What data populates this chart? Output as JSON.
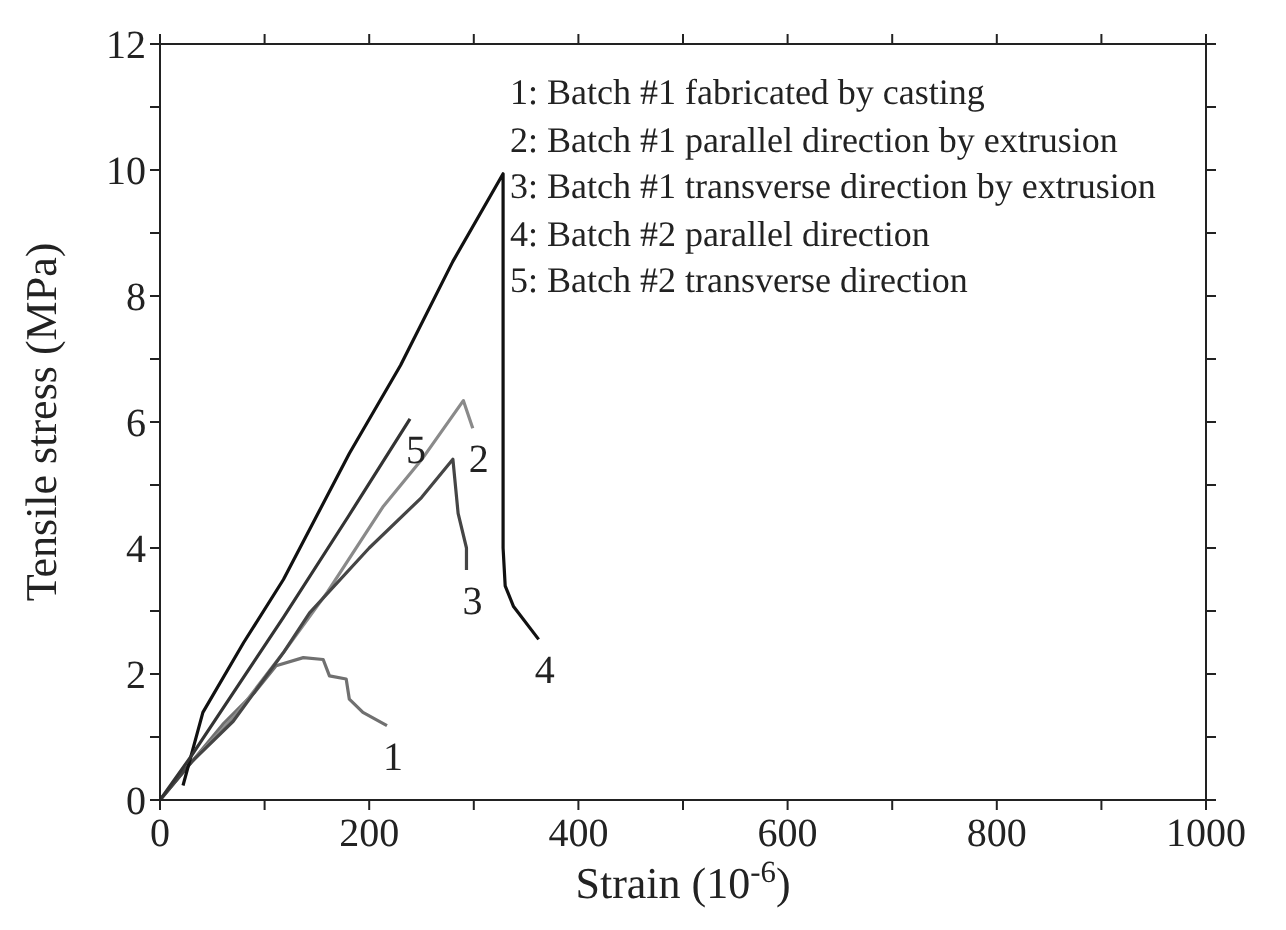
{
  "chart_data": {
    "type": "line",
    "xlabel": "Strain (10$^{-6}$)",
    "ylabel": "Tensile stress (MPa)",
    "xlim": [
      0,
      1000
    ],
    "ylim": [
      0,
      12
    ],
    "xticks": [
      0,
      {
        "value": 100,
        "label": null
      },
      200,
      {
        "value": 300,
        "label": null
      },
      400,
      {
        "value": 500,
        "label": null
      },
      600,
      {
        "value": 700,
        "label": null
      },
      800,
      {
        "value": 900,
        "label": null
      },
      1000
    ],
    "yticks": [
      0,
      {
        "value": 1,
        "label": null
      },
      2,
      {
        "value": 3,
        "label": null
      },
      4,
      {
        "value": 5,
        "label": null
      },
      6,
      {
        "value": 7,
        "label": null
      },
      8,
      {
        "value": 9,
        "label": null
      },
      10,
      {
        "value": 11,
        "label": null
      },
      12
    ],
    "grid": false,
    "legend": false,
    "annotations": [
      "1: Batch #1 fabricated by casting",
      "2: Batch #1 parallel direction by extrusion",
      "3: Batch #1 transverse direction by extrusion",
      "4: Batch #2 parallel direction",
      "5: Batch #2 transverse direction"
    ],
    "series": [
      {
        "name": "1",
        "color": "#707070",
        "x": [
          0,
          30,
          60,
          90,
          111,
          137,
          156,
          162,
          178,
          181,
          194,
          217
        ],
        "values": [
          0,
          0.6,
          1.2,
          1.7,
          2.13,
          2.26,
          2.23,
          1.97,
          1.92,
          1.6,
          1.39,
          1.18
        ]
      },
      {
        "name": "2",
        "color": "#8a8a8a",
        "x": [
          0,
          30,
          70,
          118,
          160,
          213,
          250,
          290,
          299
        ],
        "values": [
          0,
          0.6,
          1.3,
          2.34,
          3.3,
          4.65,
          5.4,
          6.34,
          5.9
        ]
      },
      {
        "name": "3",
        "color": "#454545",
        "x": [
          0,
          30,
          70,
          118,
          143,
          200,
          250,
          280,
          285,
          293,
          293
        ],
        "values": [
          0,
          0.6,
          1.25,
          2.34,
          2.97,
          4.0,
          4.8,
          5.41,
          4.55,
          4.0,
          3.65
        ]
      },
      {
        "name": "4",
        "color": "#111111",
        "x": [
          22,
          41,
          80,
          118,
          181,
          230,
          280,
          328,
          328,
          330,
          338,
          362
        ],
        "values": [
          0.23,
          1.39,
          2.5,
          3.5,
          5.5,
          6.9,
          8.55,
          9.94,
          4.0,
          3.4,
          3.07,
          2.55
        ]
      },
      {
        "name": "5",
        "color": "#333333",
        "x": [
          0,
          30,
          70,
          118,
          180,
          239
        ],
        "values": [
          0,
          0.7,
          1.7,
          2.9,
          4.5,
          6.05
        ]
      }
    ]
  }
}
